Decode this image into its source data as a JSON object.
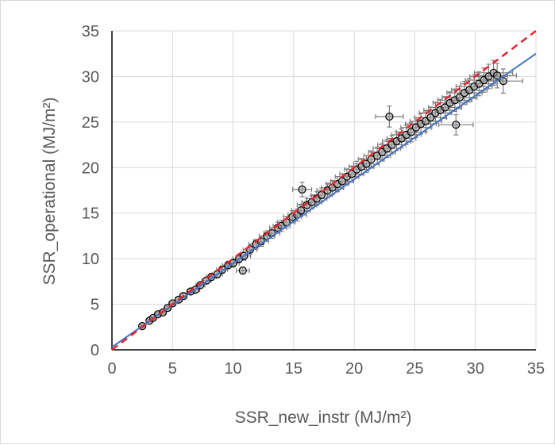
{
  "chart_data": {
    "type": "scatter",
    "xlabel": "SSR_new_instr (MJ/m²)",
    "ylabel": "SSR_operational (MJ/m²)",
    "xlim": [
      0,
      35
    ],
    "ylim": [
      0,
      35
    ],
    "xticks": [
      "0",
      "5",
      "10",
      "15",
      "20",
      "25",
      "30",
      "35"
    ],
    "yticks": [
      "0",
      "5",
      "10",
      "15",
      "20",
      "25",
      "30",
      "35"
    ],
    "grid": true,
    "legend": "none",
    "colors": {
      "points": "#000000",
      "error_bars": "#7f7f7f",
      "fit_line": "#4472c4",
      "identity_line": "#e3262b",
      "grid": "#d9d9d9"
    },
    "series": [
      {
        "style": "markers with x and y error bars",
        "x": [
          2.5,
          3.1,
          3.4,
          3.8,
          4.2,
          4.6,
          5.0,
          5.5,
          5.9,
          6.5,
          6.9,
          7.3,
          7.8,
          8.2,
          8.7,
          9.1,
          9.6,
          10.0,
          10.5,
          10.9,
          10.8,
          11.4,
          11.9,
          12.3,
          12.8,
          13.2,
          13.7,
          14.0,
          14.4,
          14.9,
          15.3,
          15.6,
          15.7,
          16.1,
          16.5,
          16.9,
          17.3,
          17.8,
          18.2,
          18.6,
          19.0,
          19.4,
          19.8,
          20.2,
          20.6,
          21.0,
          21.4,
          21.9,
          22.3,
          22.7,
          22.9,
          23.1,
          23.5,
          23.9,
          24.3,
          24.7,
          25.1,
          25.5,
          25.9,
          26.3,
          26.7,
          27.1,
          27.5,
          27.9,
          28.3,
          28.7,
          28.4,
          29.1,
          29.5,
          29.9,
          30.3,
          30.7,
          31.1,
          31.5,
          31.8,
          32.3
        ],
        "y": [
          2.6,
          3.2,
          3.5,
          3.9,
          4.1,
          4.6,
          5.1,
          5.5,
          5.9,
          6.4,
          6.6,
          7.1,
          7.6,
          8.0,
          8.3,
          8.8,
          9.3,
          9.5,
          10.0,
          10.3,
          8.7,
          11.0,
          11.6,
          11.9,
          12.5,
          12.8,
          13.4,
          13.6,
          14.0,
          14.6,
          14.8,
          15.3,
          17.6,
          15.9,
          16.2,
          16.6,
          17.0,
          17.5,
          17.8,
          18.2,
          18.5,
          19.0,
          19.3,
          19.8,
          20.1,
          20.4,
          20.9,
          21.3,
          21.7,
          22.1,
          25.6,
          22.5,
          22.9,
          23.2,
          23.6,
          23.9,
          24.4,
          24.8,
          25.1,
          25.5,
          26.0,
          26.3,
          26.6,
          27.1,
          27.4,
          27.7,
          24.7,
          28.2,
          28.5,
          28.9,
          29.2,
          29.6,
          30.0,
          30.4,
          30.1,
          29.5
        ]
      }
    ],
    "lines": [
      {
        "style": "solid blue linear fit",
        "x": [
          0,
          35
        ],
        "y": [
          0.3,
          32.5
        ]
      },
      {
        "style": "dashed red 1:1 line",
        "x": [
          0,
          35
        ],
        "y": [
          0,
          35
        ]
      }
    ]
  }
}
